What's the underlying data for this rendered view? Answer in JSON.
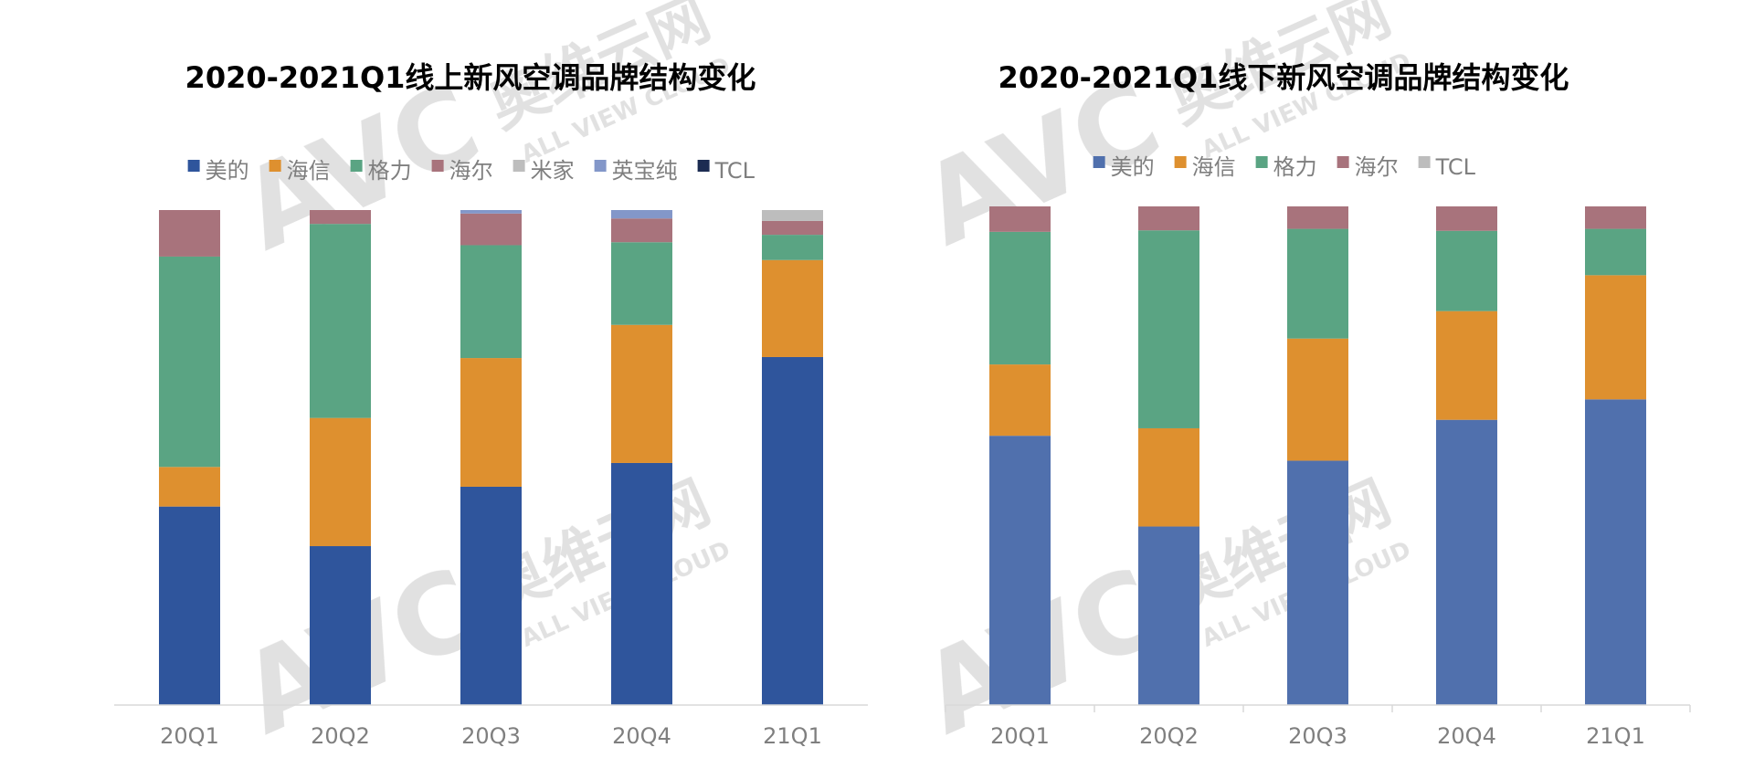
{
  "watermark": {
    "logo": "AVC",
    "brand": "奥维云网",
    "tagline": "ALL VIEW CLOUD"
  },
  "chart_data": [
    {
      "type": "bar",
      "stacked": true,
      "normalized": true,
      "title": "2020-2021Q1线上新风空调品牌结构变化",
      "xlabel": "",
      "ylabel": "",
      "categories": [
        "20Q1",
        "20Q2",
        "20Q3",
        "20Q4",
        "21Q1"
      ],
      "ylim": [
        0,
        100
      ],
      "grid": false,
      "legend_position": "top",
      "series": [
        {
          "name": "美的",
          "color": "#2f559c",
          "values": [
            40.1,
            32.1,
            44.1,
            48.9,
            70.3
          ]
        },
        {
          "name": "海信",
          "color": "#de902f",
          "values": [
            8.0,
            25.9,
            26.0,
            27.9,
            19.6
          ]
        },
        {
          "name": "格力",
          "color": "#5aa483",
          "values": [
            42.5,
            39.2,
            22.8,
            16.7,
            5.1
          ]
        },
        {
          "name": "海尔",
          "color": "#a8737c",
          "values": [
            9.4,
            2.8,
            6.4,
            4.8,
            2.8
          ]
        },
        {
          "name": "米家",
          "color": "#bdbdbd",
          "values": [
            0,
            0,
            0,
            0,
            2.2
          ]
        },
        {
          "name": "英宝纯",
          "color": "#8397c9",
          "values": [
            0,
            0,
            0.7,
            1.7,
            0
          ]
        },
        {
          "name": "TCL",
          "color": "#1c2c52",
          "values": [
            0,
            0,
            0,
            0,
            0
          ]
        }
      ]
    },
    {
      "type": "bar",
      "stacked": true,
      "normalized": true,
      "title": "2020-2021Q1线下新风空调品牌结构变化",
      "xlabel": "",
      "ylabel": "",
      "categories": [
        "20Q1",
        "20Q2",
        "20Q3",
        "20Q4",
        "21Q1"
      ],
      "ylim": [
        0,
        100
      ],
      "grid": false,
      "legend_position": "top",
      "series": [
        {
          "name": "美的",
          "color": "#5070ad",
          "values": [
            54.0,
            35.8,
            49.0,
            57.2,
            61.3
          ]
        },
        {
          "name": "海信",
          "color": "#de902f",
          "values": [
            14.3,
            19.7,
            24.5,
            21.8,
            24.9
          ]
        },
        {
          "name": "格力",
          "color": "#5aa483",
          "values": [
            26.6,
            39.7,
            22.0,
            16.1,
            9.3
          ]
        },
        {
          "name": "海尔",
          "color": "#a8737c",
          "values": [
            5.1,
            4.8,
            4.5,
            4.9,
            4.5
          ]
        },
        {
          "name": "TCL",
          "color": "#bdbdbd",
          "values": [
            0,
            0,
            0,
            0,
            0
          ]
        }
      ]
    }
  ]
}
